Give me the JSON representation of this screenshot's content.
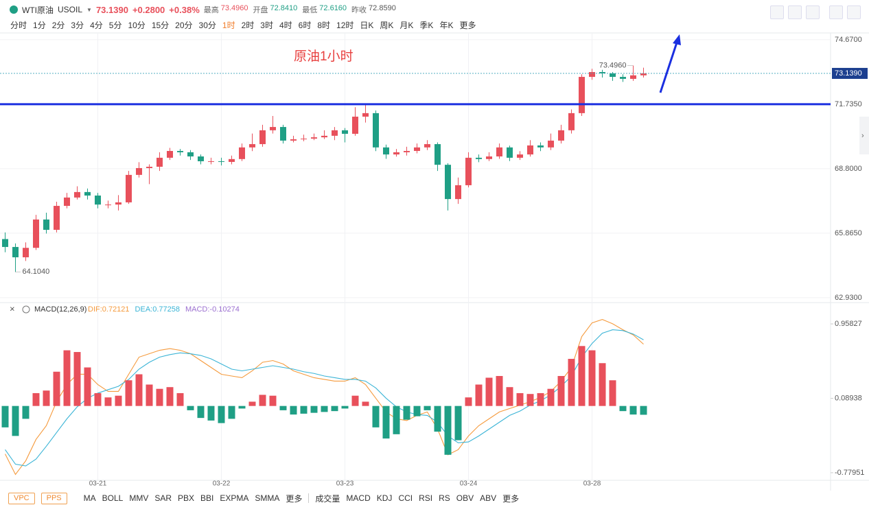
{
  "header": {
    "name": "WTI原油",
    "code": "USOIL",
    "price": "73.1390",
    "change": "+0.2800",
    "change_pct": "+0.38%",
    "stats": [
      {
        "label": "最高",
        "value": "73.4960"
      },
      {
        "label": "开盘",
        "value": "72.8410"
      },
      {
        "label": "最低",
        "value": "72.6160"
      },
      {
        "label": "昨收",
        "value": "72.8590"
      }
    ]
  },
  "periods": [
    "分时",
    "1分",
    "2分",
    "3分",
    "4分",
    "5分",
    "10分",
    "15分",
    "20分",
    "30分",
    "1时",
    "2时",
    "3时",
    "4时",
    "6时",
    "8时",
    "12时",
    "日K",
    "周K",
    "月K",
    "季K",
    "年K",
    "更多"
  ],
  "chart_data": [
    {
      "type": "candlestick",
      "annotation": "原油1小时",
      "ylim": [
        62.74,
        74.98
      ],
      "yticks": [
        {
          "value": 74.67,
          "label": "74.6700"
        },
        {
          "value": 71.735,
          "label": "71.7350"
        },
        {
          "value": 68.8,
          "label": "68.8000"
        },
        {
          "value": 65.865,
          "label": "65.8650"
        },
        {
          "value": 62.93,
          "label": "62.9300"
        }
      ],
      "up_color": "#e8505b",
      "down_color": "#1f9f85",
      "grid": true,
      "hline": 71.735,
      "hline_color": "#1a2fe0",
      "last_price": {
        "value": 73.139,
        "label": "73.1390"
      },
      "max_label": {
        "value": 73.496,
        "label": "73.4960"
      },
      "min_label": {
        "value": 64.104,
        "label": "64.1040"
      },
      "open": [
        65.6,
        65.24,
        64.77,
        65.2,
        66.49,
        66.02,
        67.11,
        67.49,
        67.74,
        67.58,
        67.17,
        67.17,
        67.27,
        68.52,
        68.83,
        68.89,
        69.3,
        69.61,
        69.55,
        69.36,
        69.14,
        69.14,
        69.11,
        69.24,
        69.77,
        69.92,
        70.55,
        70.7,
        70.08,
        70.14,
        70.17,
        70.23,
        70.3,
        70.55,
        70.39,
        71.17,
        71.33,
        69.77,
        69.45,
        69.55,
        69.61,
        69.77,
        69.92,
        68.98,
        67.42,
        68.05,
        69.3,
        69.24,
        69.36,
        69.77,
        69.3,
        69.45,
        69.86,
        69.77,
        70.08,
        70.55,
        71.33,
        72.98,
        73.2,
        73.14,
        72.98,
        72.89,
        73.05
      ],
      "high": [
        65.9,
        65.4,
        65.45,
        66.7,
        66.8,
        67.3,
        67.7,
        68.0,
        67.9,
        67.7,
        67.35,
        67.6,
        68.7,
        69.1,
        69.0,
        69.55,
        69.75,
        69.7,
        69.65,
        69.45,
        69.3,
        69.3,
        69.4,
        69.95,
        70.4,
        70.8,
        71.2,
        70.8,
        70.3,
        70.35,
        70.4,
        70.55,
        70.7,
        70.65,
        71.6,
        71.73,
        71.45,
        69.9,
        69.7,
        69.8,
        69.95,
        70.1,
        70.0,
        69.05,
        68.4,
        69.55,
        69.45,
        69.55,
        69.95,
        69.85,
        69.6,
        70.1,
        70.0,
        70.4,
        70.8,
        71.5,
        73.1,
        73.35,
        73.3,
        73.2,
        73.1,
        73.496,
        73.4
      ],
      "low": [
        65.0,
        64.104,
        64.6,
        65.1,
        65.85,
        65.9,
        67.0,
        67.4,
        67.4,
        67.0,
        67.0,
        66.9,
        67.2,
        68.4,
        68.1,
        68.7,
        69.2,
        69.4,
        69.2,
        69.0,
        69.0,
        68.95,
        69.0,
        69.15,
        69.6,
        69.8,
        70.4,
        69.95,
        70.0,
        70.05,
        70.1,
        70.15,
        70.1,
        70.0,
        70.3,
        70.9,
        69.6,
        69.25,
        69.35,
        69.4,
        69.5,
        69.65,
        68.7,
        66.9,
        67.2,
        67.95,
        69.1,
        69.15,
        69.25,
        69.15,
        69.2,
        69.35,
        69.6,
        69.65,
        69.95,
        70.4,
        71.2,
        72.85,
        72.95,
        72.8,
        72.75,
        72.8,
        72.95
      ],
      "close": [
        65.24,
        64.77,
        65.2,
        66.49,
        66.02,
        67.11,
        67.49,
        67.74,
        67.58,
        67.17,
        67.17,
        67.27,
        68.52,
        68.83,
        68.89,
        69.3,
        69.61,
        69.55,
        69.36,
        69.14,
        69.14,
        69.11,
        69.24,
        69.77,
        69.92,
        70.55,
        70.7,
        70.08,
        70.14,
        70.17,
        70.23,
        70.3,
        70.55,
        70.39,
        71.17,
        71.33,
        69.77,
        69.45,
        69.55,
        69.61,
        69.77,
        69.92,
        68.98,
        67.42,
        68.05,
        69.3,
        69.24,
        69.36,
        69.77,
        69.3,
        69.45,
        69.86,
        69.77,
        70.08,
        70.55,
        71.33,
        72.98,
        73.2,
        73.14,
        72.98,
        72.89,
        73.05,
        73.139
      ]
    },
    {
      "type": "macd",
      "indicator": "MACD(12,26,9)",
      "ylim": [
        -0.868,
        1.095
      ],
      "yticks": [
        0.95827,
        0.08938,
        -0.77951
      ],
      "categories": [
        null,
        null,
        null,
        null,
        null,
        null,
        null,
        null,
        null,
        "03-21",
        null,
        null,
        null,
        null,
        null,
        null,
        null,
        null,
        null,
        null,
        null,
        "03-22",
        null,
        null,
        null,
        null,
        null,
        null,
        null,
        null,
        null,
        null,
        null,
        "03-23",
        null,
        null,
        null,
        null,
        null,
        null,
        null,
        null,
        null,
        null,
        null,
        "03-24",
        null,
        null,
        null,
        null,
        null,
        null,
        null,
        null,
        null,
        null,
        null,
        "03-28",
        null,
        null,
        null,
        null,
        null
      ],
      "series": [
        {
          "name": "DIF:0.72121",
          "color": "#f59a3c",
          "values": [
            -0.56,
            -0.8,
            -0.64,
            -0.39,
            -0.23,
            0.05,
            0.25,
            0.37,
            0.37,
            0.25,
            0.17,
            0.17,
            0.37,
            0.57,
            0.61,
            0.65,
            0.67,
            0.65,
            0.61,
            0.53,
            0.45,
            0.37,
            0.35,
            0.33,
            0.41,
            0.51,
            0.53,
            0.49,
            0.41,
            0.37,
            0.33,
            0.31,
            0.29,
            0.29,
            0.33,
            0.25,
            0.09,
            -0.07,
            -0.15,
            -0.17,
            -0.11,
            -0.07,
            -0.27,
            -0.57,
            -0.51,
            -0.35,
            -0.23,
            -0.15,
            -0.07,
            -0.03,
            0.01,
            0.05,
            0.1,
            0.17,
            0.29,
            0.45,
            0.81,
            0.97,
            1.01,
            0.96,
            0.89,
            0.83,
            0.72121
          ]
        },
        {
          "name": "DEA:0.77258",
          "color": "#3ab4d6",
          "values": [
            -0.51,
            -0.68,
            -0.7,
            -0.62,
            -0.47,
            -0.31,
            -0.15,
            -0.01,
            0.09,
            0.15,
            0.19,
            0.23,
            0.31,
            0.43,
            0.51,
            0.57,
            0.6,
            0.62,
            0.61,
            0.59,
            0.55,
            0.49,
            0.43,
            0.41,
            0.43,
            0.45,
            0.47,
            0.45,
            0.43,
            0.4,
            0.38,
            0.35,
            0.33,
            0.31,
            0.31,
            0.29,
            0.21,
            0.09,
            -0.01,
            -0.07,
            -0.1,
            -0.11,
            -0.19,
            -0.35,
            -0.43,
            -0.42,
            -0.35,
            -0.27,
            -0.19,
            -0.11,
            -0.06,
            0.01,
            0.06,
            0.13,
            0.23,
            0.35,
            0.57,
            0.73,
            0.85,
            0.89,
            0.88,
            0.84,
            0.77258
          ]
        },
        {
          "name": "MACD:-0.10274",
          "color": "#9b6fd0",
          "up_color": "#e8505b",
          "down_color": "#1f9f85",
          "values": [
            -0.25,
            -0.35,
            -0.15,
            0.15,
            0.18,
            0.4,
            0.65,
            0.63,
            0.45,
            0.15,
            0.1,
            0.12,
            0.3,
            0.37,
            0.25,
            0.2,
            0.22,
            0.15,
            -0.05,
            -0.14,
            -0.17,
            -0.2,
            -0.15,
            -0.03,
            0.05,
            0.13,
            0.12,
            -0.05,
            -0.1,
            -0.09,
            -0.08,
            -0.07,
            -0.06,
            -0.03,
            0.12,
            0.05,
            -0.25,
            -0.38,
            -0.33,
            -0.16,
            -0.12,
            -0.05,
            -0.3,
            -0.57,
            -0.4,
            0.1,
            0.25,
            0.33,
            0.35,
            0.22,
            0.15,
            0.14,
            0.15,
            0.2,
            0.35,
            0.55,
            0.7,
            0.65,
            0.5,
            0.3,
            -0.06,
            -0.1,
            -0.10274
          ]
        }
      ]
    }
  ],
  "footer": {
    "boxed": [
      "VPC",
      "PPS"
    ],
    "main": [
      "MA",
      "BOLL",
      "MMV",
      "SAR",
      "PBX",
      "BBI",
      "EXPMA",
      "SMMA",
      "更多"
    ],
    "sub": [
      "成交量",
      "MACD",
      "KDJ",
      "CCI",
      "RSI",
      "RS",
      "OBV",
      "ABV",
      "更多"
    ]
  }
}
